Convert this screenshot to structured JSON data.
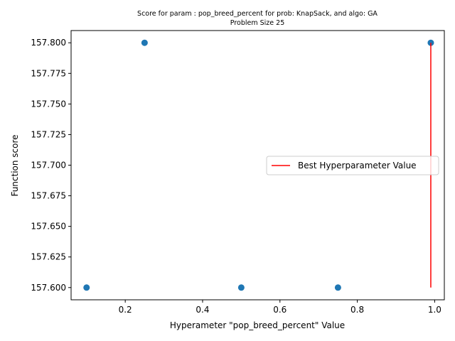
{
  "chart_data": {
    "type": "scatter",
    "title": "Score for param : pop_breed_percent for prob: KnapSack, and algo: GA",
    "subtitle": "Problem Size 25",
    "xlabel": "Hyperameter \"pop_breed_percent\" Value",
    "ylabel": "Function score",
    "xlim": [
      0.06,
      1.025
    ],
    "ylim": [
      157.59,
      157.81
    ],
    "xticks": [
      0.2,
      0.4,
      0.6,
      0.8,
      1.0
    ],
    "xtick_labels": [
      "0.2",
      "0.4",
      "0.6",
      "0.8",
      "1.0"
    ],
    "yticks": [
      157.6,
      157.625,
      157.65,
      157.675,
      157.7,
      157.725,
      157.75,
      157.775,
      157.8
    ],
    "ytick_labels": [
      "157.600",
      "157.625",
      "157.650",
      "157.675",
      "157.700",
      "157.725",
      "157.750",
      "157.775",
      "157.800"
    ],
    "grid": false,
    "legend_position": "center-right",
    "series": [
      {
        "x": [
          0.1,
          0.25,
          0.5,
          0.75,
          0.99
        ],
        "y": [
          157.6,
          157.8,
          157.6,
          157.6,
          157.8
        ],
        "color": "#1f77b4"
      }
    ],
    "best_line": {
      "name": "Best Hyperparameter Value",
      "x": 0.99,
      "y_range": [
        157.6,
        157.8
      ],
      "color": "#ff0000"
    }
  }
}
